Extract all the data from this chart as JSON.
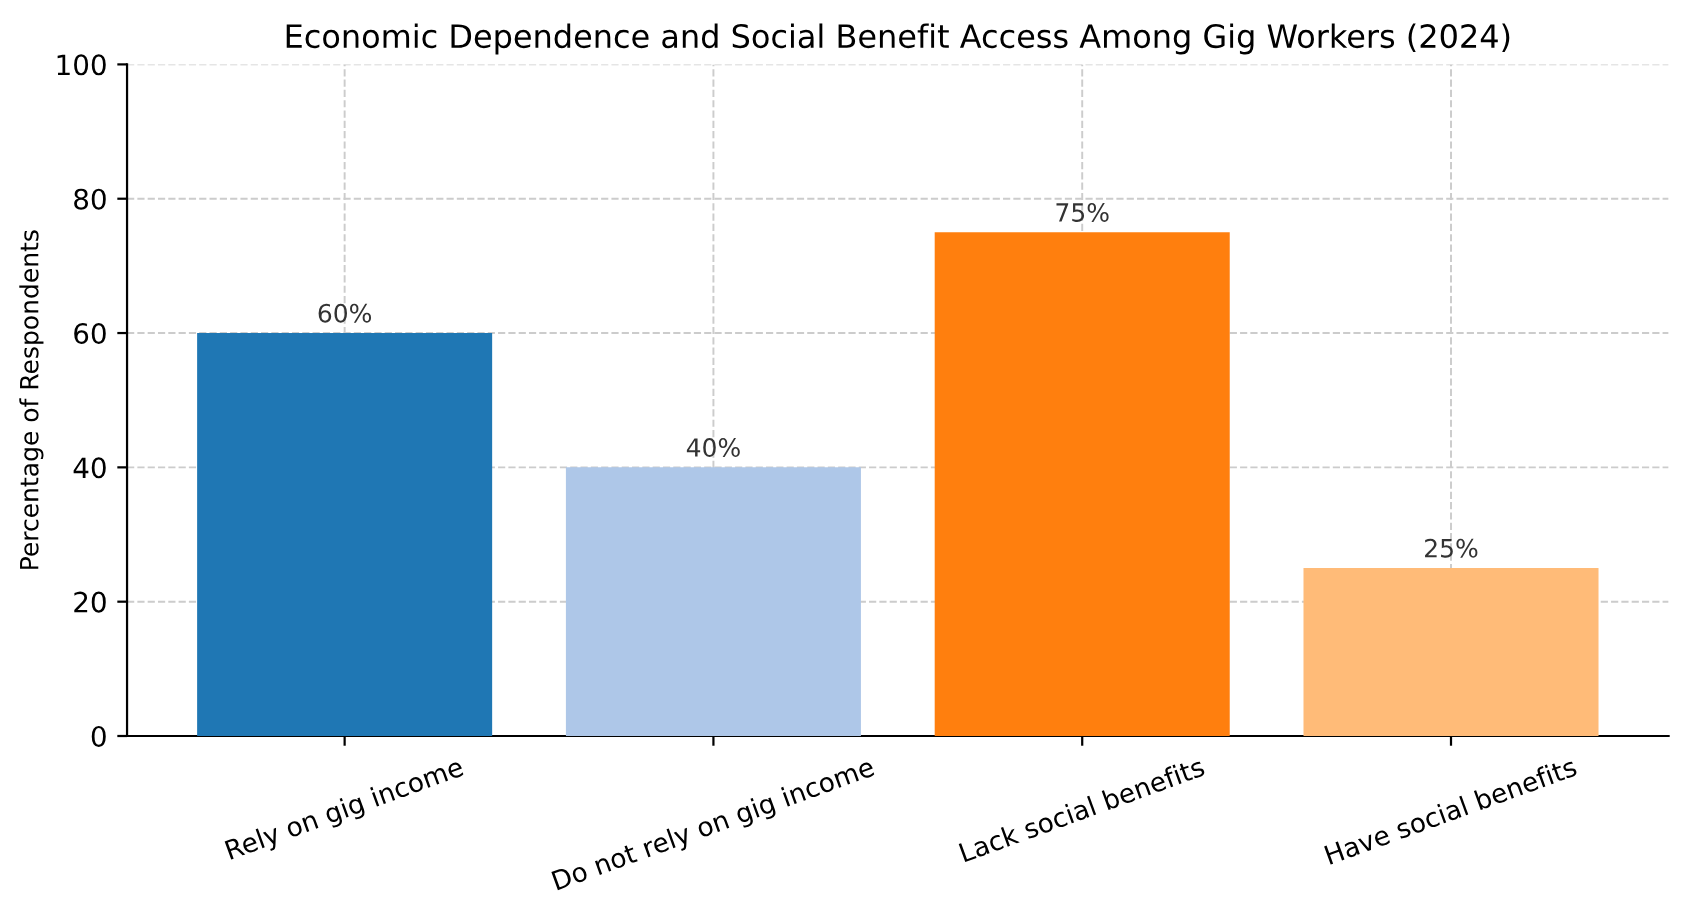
{
  "chart_data": {
    "type": "bar",
    "title": "Economic Dependence and Social Benefit Access Among Gig Workers (2024)",
    "ylabel": "Percentage of Respondents",
    "categories": [
      "Rely on gig income",
      "Do not rely on gig income",
      "Lack social benefits",
      "Have social benefits"
    ],
    "values": [
      60,
      40,
      75,
      25
    ],
    "colors": [
      "#1f77b4",
      "#aec7e8",
      "#ff7f0e",
      "#ffbb78"
    ],
    "value_labels": [
      "60%",
      "40%",
      "75%",
      "25%"
    ],
    "ylim": [
      0,
      100
    ],
    "yticks": [
      0,
      20,
      40,
      60,
      80,
      100
    ],
    "grid": true
  }
}
